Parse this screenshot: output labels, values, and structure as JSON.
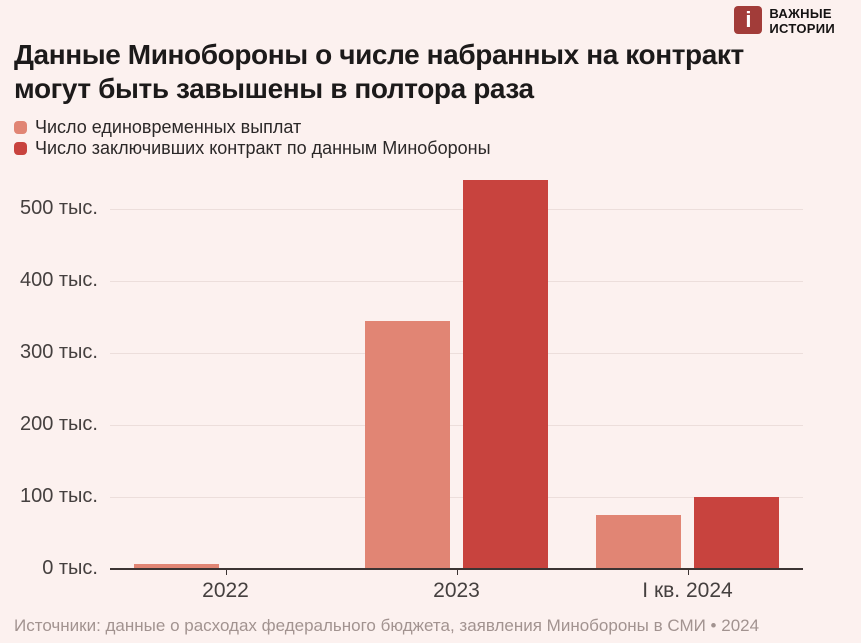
{
  "brand": {
    "name_line1": "ВАЖНЫЕ",
    "name_line2": "ИСТОРИИ",
    "icon_glyph": "i",
    "icon_color": "#a23c39"
  },
  "title_line1": "Данные Минобороны о числе набранных на контракт",
  "title_line2": "могут быть завышены в полтора раза",
  "legend": [
    {
      "label": "Число единовременных выплат",
      "color": "#e18574"
    },
    {
      "label": "Число заключивших контракт по данным Минобороны",
      "color": "#c8433e"
    }
  ],
  "chart_data": {
    "type": "bar",
    "title": "Данные Минобороны о числе набранных на контракт могут быть завышены в полтора раза",
    "categories": [
      "2022",
      "2023",
      "I кв. 2024"
    ],
    "series": [
      {
        "name": "Число единовременных выплат",
        "color": "#e18574",
        "values": [
          7,
          345,
          75
        ]
      },
      {
        "name": "Число заключивших контракт по данным Минобороны",
        "color": "#c8433e",
        "values": [
          null,
          540,
          100
        ]
      }
    ],
    "y_ticks": [
      0,
      100,
      200,
      300,
      400,
      500
    ],
    "y_tick_labels": [
      "0 тыс.",
      "100 тыс.",
      "200 тыс.",
      "300 тыс.",
      "400 тыс.",
      "500 тыс."
    ],
    "y_unit": "тыс.",
    "ylim": [
      0,
      560
    ],
    "grid": true,
    "legend_position": "top-left"
  },
  "footer": {
    "source": "Источники: данные о расходах федерального бюджета, заявления Минобороны в СМИ • 2024"
  }
}
